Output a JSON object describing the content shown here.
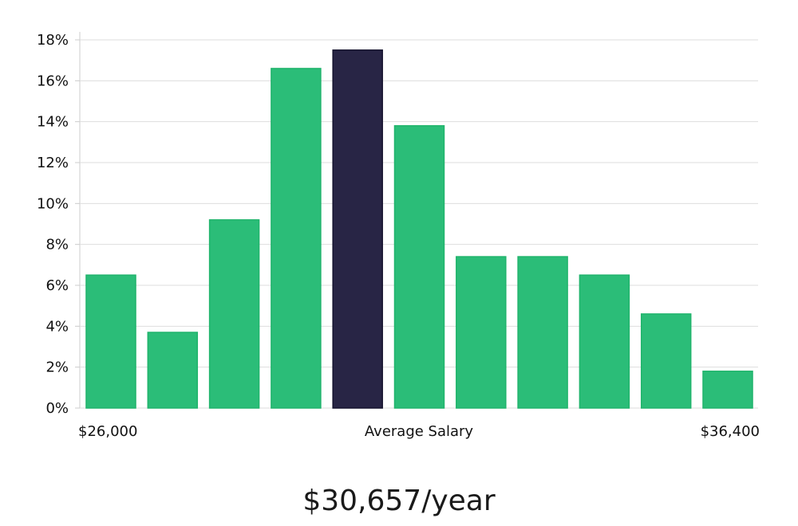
{
  "chart_data": {
    "type": "bar",
    "ylim": [
      0,
      18
    ],
    "yticks": [
      0,
      2,
      4,
      6,
      8,
      10,
      12,
      14,
      16,
      18
    ],
    "ytick_suffix": "%",
    "values": [
      6.5,
      3.7,
      9.2,
      16.6,
      17.5,
      13.8,
      7.4,
      7.4,
      6.5,
      4.6,
      1.8
    ],
    "highlight_index": 4,
    "x_labels": {
      "left": "$26,000",
      "center": "Average Salary",
      "right": "$36,400"
    },
    "grid": true
  },
  "summary": {
    "salary_text": "$30,657/year"
  },
  "colors": {
    "bar": "#2bbd78",
    "bar_stroke": "#20b46c",
    "highlight": "#282545",
    "highlight_stroke": "#15132e",
    "grid": "#dddddd",
    "axis": "#cccccc"
  }
}
